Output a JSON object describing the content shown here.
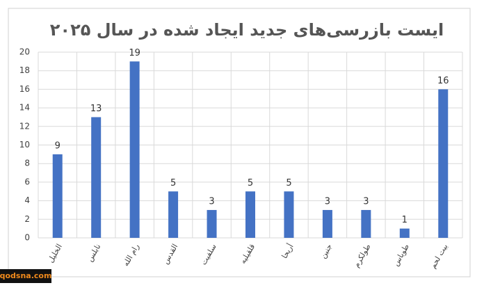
{
  "chart_data": {
    "type": "bar",
    "title": "ایست بازرسی‌های جدید ایجاد شده در سال ۲۰۲۵",
    "categories": [
      "الخلیل",
      "نابلس",
      "رام الله",
      "القدس",
      "سلفیت",
      "قلقیلیه",
      "أریحا",
      "جنین",
      "طولکرم",
      "طوباس",
      "بیت لحم"
    ],
    "values": [
      9,
      13,
      19,
      5,
      3,
      5,
      5,
      3,
      3,
      1,
      16
    ],
    "color": "#4472c4",
    "ylim": [
      0,
      20
    ],
    "yticks": [
      0,
      2,
      4,
      6,
      8,
      10,
      12,
      14,
      16,
      18,
      20
    ],
    "grid": true
  },
  "watermark": "qodsna.com"
}
